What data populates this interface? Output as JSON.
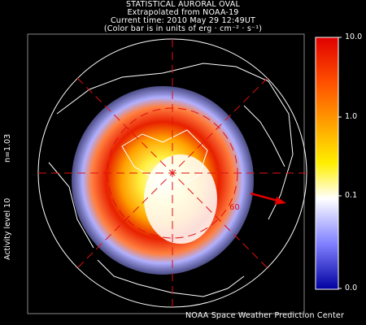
{
  "header": {
    "line1": "STATISTICAL AURORAL OVAL",
    "line2": "Extrapolated from NOAA-19",
    "line3": "Current time: 2010 May 29 12:49UT",
    "line4": "(Color bar is in units of erg · cm⁻² · s⁻¹)"
  },
  "side_labels": {
    "n_value": "n=1.03",
    "activity": "Activity level 10"
  },
  "colorbar": {
    "ticks": [
      "10.0",
      "1.0",
      "0.1",
      "0.0"
    ],
    "colors": [
      "#e00000",
      "#ff6000",
      "#ffd000",
      "#ffffff",
      "#9090ff",
      "#2020ff",
      "#0000a0"
    ]
  },
  "map": {
    "latitude_label": "60",
    "sun_direction": "red-arrow",
    "grid_color": "#e01010"
  },
  "credit": "NOAA Space Weather Prediction Center"
}
